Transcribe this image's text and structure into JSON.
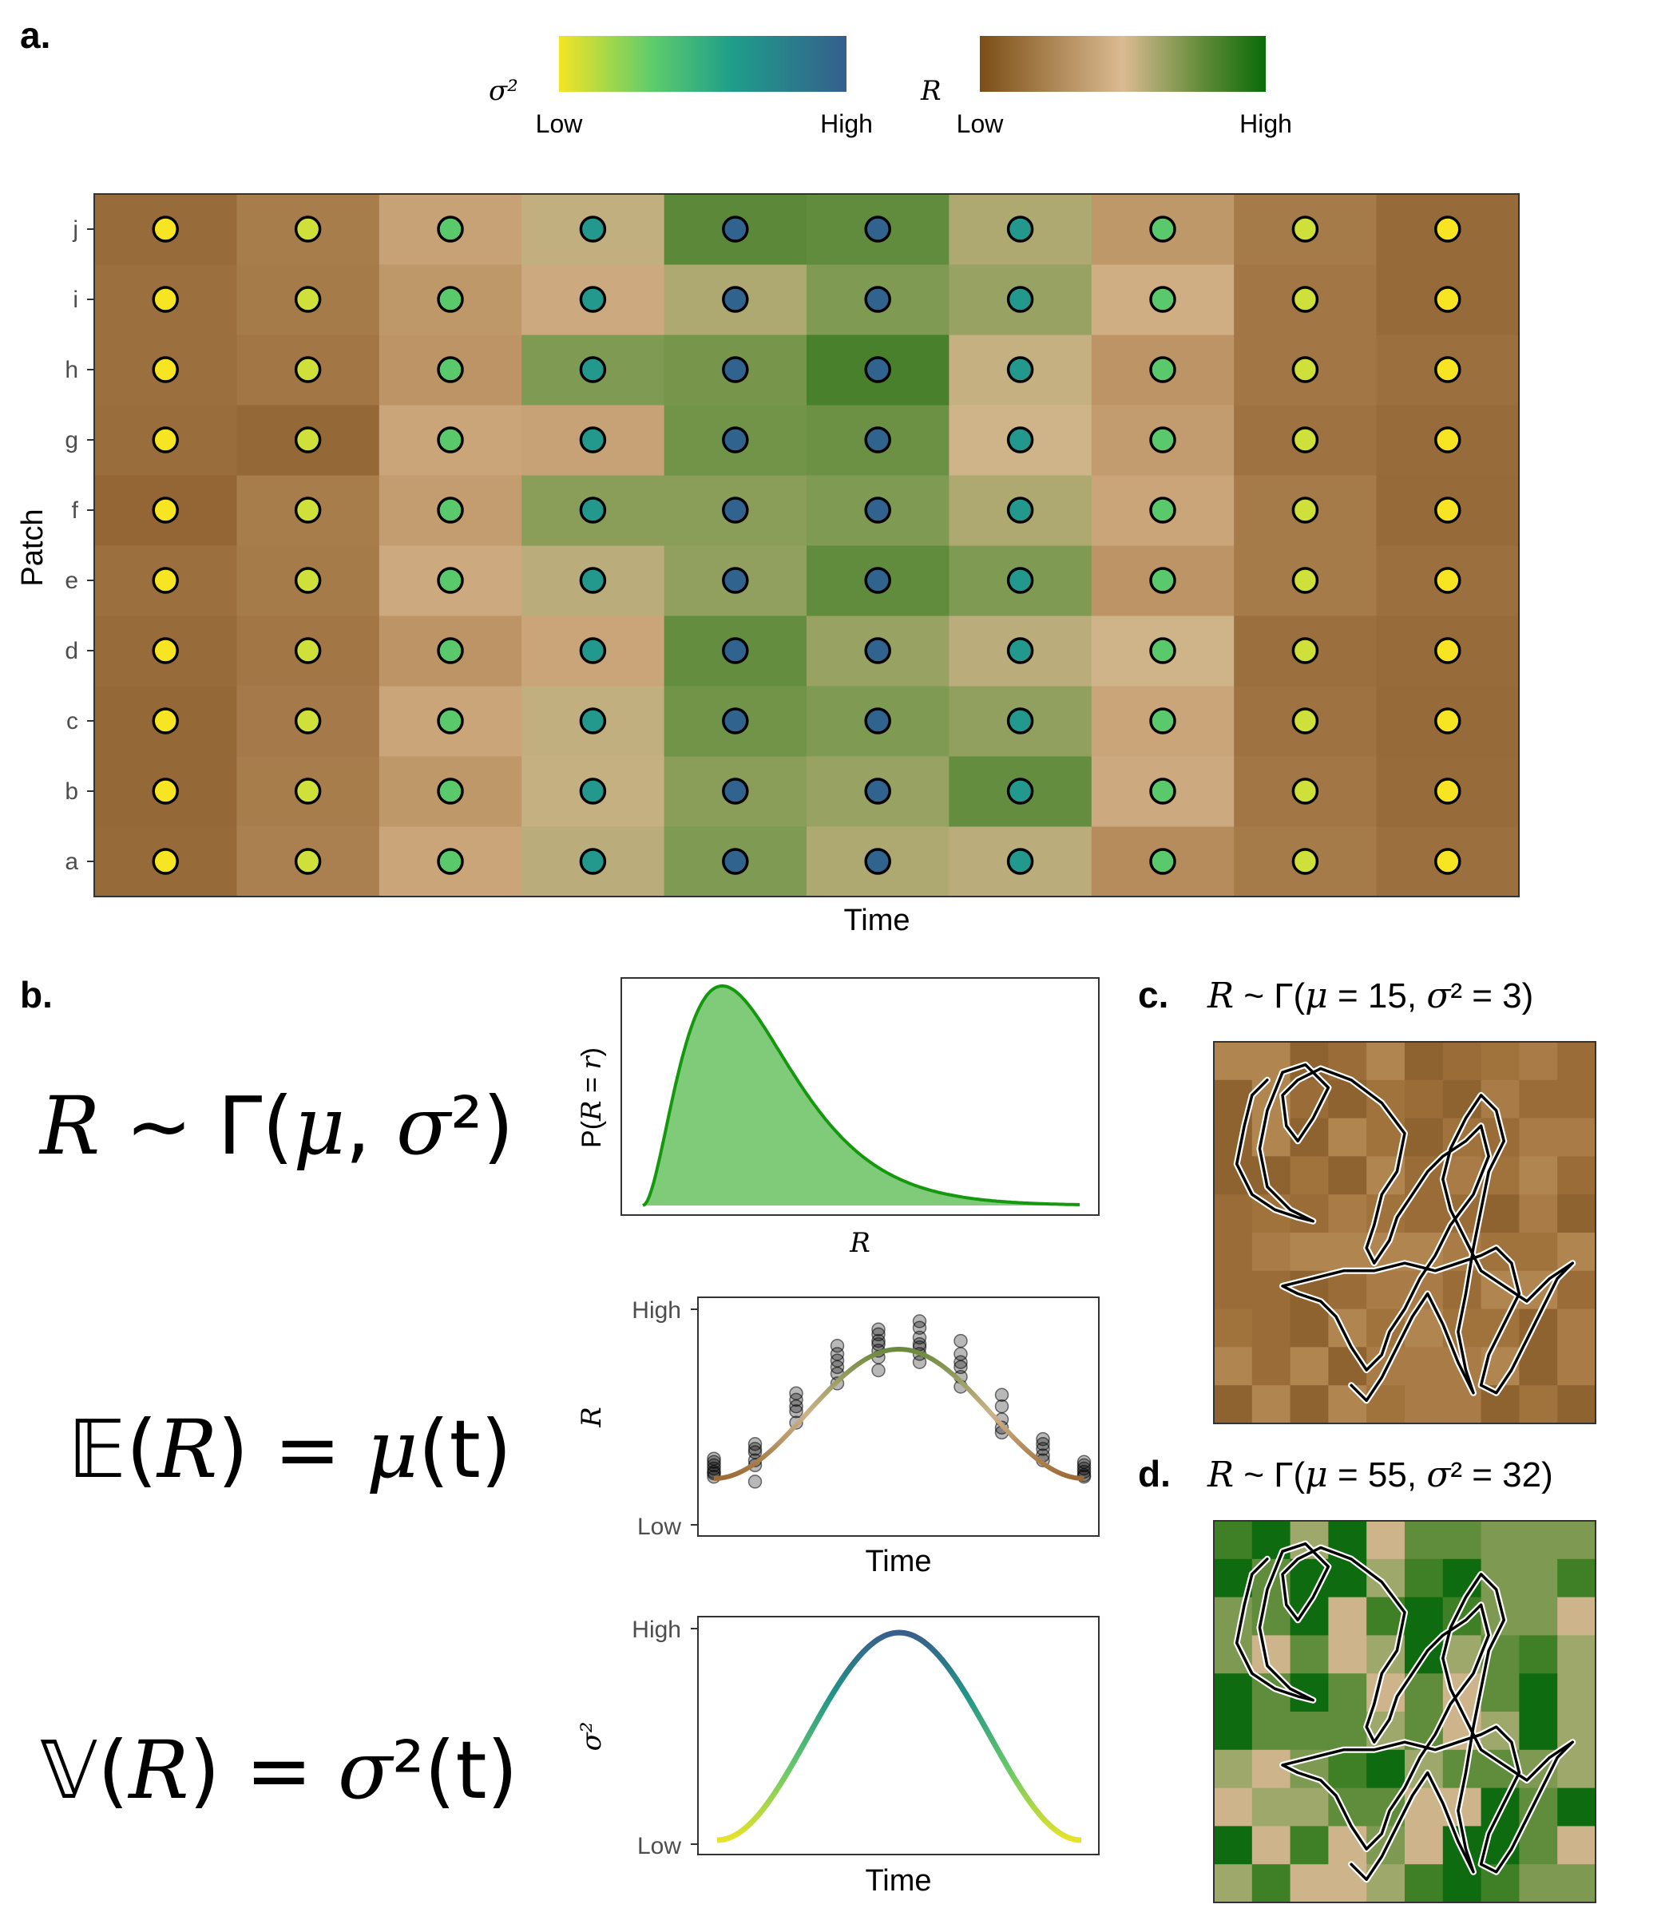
{
  "panels": {
    "a": "a.",
    "b": "b.",
    "c": "c.",
    "d": "d."
  },
  "legend": {
    "sigma2": {
      "symbol": "σ²",
      "low": "Low",
      "high": "High",
      "colors": [
        "#f0e426",
        "#52c96e",
        "#1f9e8a",
        "#34618d"
      ]
    },
    "R": {
      "symbol": "R",
      "low": "Low",
      "high": "High",
      "colors": [
        "#7b4f16",
        "#d9b990",
        "#5f8a3a",
        "#0a6a0a"
      ]
    }
  },
  "panel_a": {
    "xlabel": "Time",
    "ylabel": "Patch",
    "patches": [
      "a",
      "b",
      "c",
      "d",
      "e",
      "f",
      "g",
      "h",
      "i",
      "j"
    ],
    "n_times": 10,
    "sigma2_colors": [
      "#f7e524",
      "#cfe03a",
      "#5ac96c",
      "#22998c",
      "#30648e",
      "#30648e",
      "#22998c",
      "#5ac96c",
      "#cfe03a",
      "#f7e524"
    ],
    "R_levels": [
      [
        0.05,
        0.18,
        0.4,
        0.58,
        0.75,
        0.62,
        0.58,
        0.25,
        0.15,
        0.08
      ],
      [
        0.04,
        0.16,
        0.32,
        0.55,
        0.72,
        0.68,
        0.85,
        0.42,
        0.12,
        0.06
      ],
      [
        0.04,
        0.14,
        0.4,
        0.56,
        0.8,
        0.75,
        0.7,
        0.4,
        0.1,
        0.05
      ],
      [
        0.06,
        0.12,
        0.3,
        0.4,
        0.85,
        0.68,
        0.58,
        0.52,
        0.08,
        0.06
      ],
      [
        0.08,
        0.15,
        0.42,
        0.58,
        0.7,
        0.86,
        0.75,
        0.3,
        0.15,
        0.08
      ],
      [
        0.03,
        0.16,
        0.35,
        0.72,
        0.72,
        0.75,
        0.62,
        0.4,
        0.15,
        0.05
      ],
      [
        0.07,
        0.04,
        0.4,
        0.38,
        0.8,
        0.82,
        0.52,
        0.34,
        0.1,
        0.06
      ],
      [
        0.08,
        0.12,
        0.3,
        0.75,
        0.78,
        0.95,
        0.55,
        0.3,
        0.12,
        0.08
      ],
      [
        0.08,
        0.15,
        0.32,
        0.42,
        0.62,
        0.75,
        0.68,
        0.45,
        0.12,
        0.05
      ],
      [
        0.06,
        0.16,
        0.38,
        0.56,
        0.88,
        0.86,
        0.62,
        0.32,
        0.15,
        0.05
      ]
    ]
  },
  "panel_b": {
    "eq1": {
      "lhs": "R",
      "rest": " ~ Γ(",
      "mu": "μ",
      "comma": ", ",
      "sigma": "σ",
      "tail": "²)"
    },
    "eq2": {
      "lhs": "𝔼(",
      "R": "R",
      "mid": ") = ",
      "mu": "μ",
      "tail": "(t)"
    },
    "eq3": {
      "lhs": "𝕍(",
      "R": "R",
      "mid": ") = ",
      "sigma": "σ",
      "tail": "²(t)"
    },
    "density_plot": {
      "ylabel_prefix": "P(",
      "ylabel_R": "R",
      "ylabel_mid": " = ",
      "ylabel_r": "r",
      "ylabel_suffix": ")",
      "xlabel": "R",
      "fill": "#7fcb7a",
      "stroke": "#14990e"
    },
    "mean_plot": {
      "xlabel": "Time",
      "ylabel": "R",
      "ytick_high": "High",
      "ytick_low": "Low",
      "points": [
        [
          0,
          0.05
        ],
        [
          0,
          0.08
        ],
        [
          0,
          0.1
        ],
        [
          0,
          0.12
        ],
        [
          0,
          0.07
        ],
        [
          0,
          0.14
        ],
        [
          0,
          0.16
        ],
        [
          1,
          0.15
        ],
        [
          1,
          0.2
        ],
        [
          1,
          0.25
        ],
        [
          1,
          0.22
        ],
        [
          1,
          0.02
        ],
        [
          1,
          0.12
        ],
        [
          2,
          0.38
        ],
        [
          2,
          0.45
        ],
        [
          2,
          0.52
        ],
        [
          2,
          0.56
        ],
        [
          2,
          0.48
        ],
        [
          3,
          0.62
        ],
        [
          3,
          0.68
        ],
        [
          3,
          0.72
        ],
        [
          3,
          0.8
        ],
        [
          3,
          0.85
        ],
        [
          3,
          0.76
        ],
        [
          4,
          0.78
        ],
        [
          4,
          0.82
        ],
        [
          4,
          0.88
        ],
        [
          4,
          0.92
        ],
        [
          4,
          0.95
        ],
        [
          4,
          0.86
        ],
        [
          4,
          0.7
        ],
        [
          5,
          0.8
        ],
        [
          5,
          0.86
        ],
        [
          5,
          0.9
        ],
        [
          5,
          0.96
        ],
        [
          5,
          1.0
        ],
        [
          5,
          0.84
        ],
        [
          5,
          0.75
        ],
        [
          6,
          0.6
        ],
        [
          6,
          0.66
        ],
        [
          6,
          0.72
        ],
        [
          6,
          0.8
        ],
        [
          6,
          0.88
        ],
        [
          6,
          0.75
        ],
        [
          7,
          0.35
        ],
        [
          7,
          0.4
        ],
        [
          7,
          0.48
        ],
        [
          7,
          0.55
        ],
        [
          7,
          0.32
        ],
        [
          8,
          0.18
        ],
        [
          8,
          0.22
        ],
        [
          8,
          0.25
        ],
        [
          8,
          0.28
        ],
        [
          8,
          0.15
        ],
        [
          9,
          0.05
        ],
        [
          9,
          0.08
        ],
        [
          9,
          0.1
        ],
        [
          9,
          0.12
        ],
        [
          9,
          0.14
        ],
        [
          9,
          0.06
        ]
      ]
    },
    "var_plot": {
      "xlabel": "Time",
      "ylabel": "σ²",
      "ytick_high": "High",
      "ytick_low": "Low"
    }
  },
  "panel_c": {
    "title": {
      "R": "R",
      "rest1": " ~ Γ(",
      "mu": "μ",
      "rest2": " = 15, ",
      "sigma": "σ",
      "rest3": "² = 3)"
    },
    "palette": [
      "#8e6330",
      "#9a6c37",
      "#a0733d",
      "#a97c47",
      "#b1854f"
    ]
  },
  "panel_d": {
    "title": {
      "R": "R",
      "rest1": " ~ Γ(",
      "mu": "μ",
      "rest2": " = 55, ",
      "sigma": "σ",
      "rest3": "² = 32)"
    },
    "palette": [
      "#0f6b0f",
      "#3f7f26",
      "#5f8d3b",
      "#7e9a52",
      "#9da86a",
      "#cdb48a"
    ]
  }
}
